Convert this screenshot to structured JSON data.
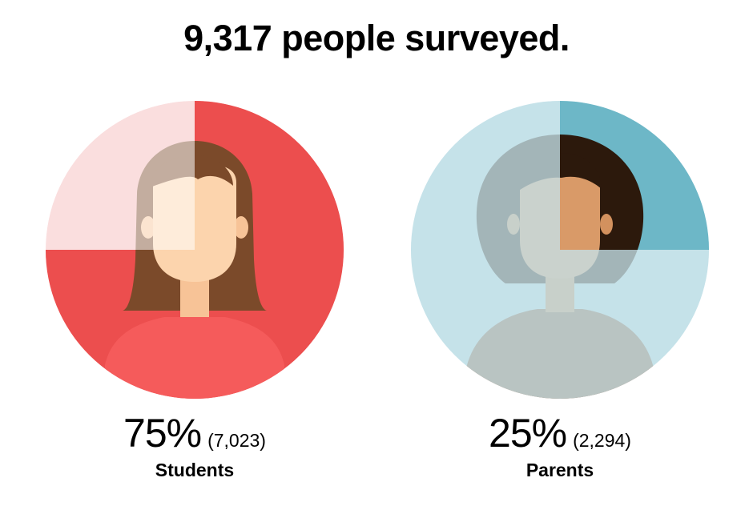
{
  "title": "9,317 people surveyed.",
  "chart_data": {
    "type": "pie",
    "title": "9,317 people surveyed.",
    "total": 9317,
    "slices": [
      {
        "label": "Students",
        "percent": 75,
        "count": 7023,
        "percent_label": "75%",
        "count_label": "(7,023)",
        "color": "#ec4e4e",
        "light_color": "#f4b5b7"
      },
      {
        "label": "Parents",
        "percent": 25,
        "count": 2294,
        "percent_label": "25%",
        "count_label": "(2,294)",
        "color": "#6db7c7",
        "light_color": "#c5e2e9"
      }
    ]
  }
}
